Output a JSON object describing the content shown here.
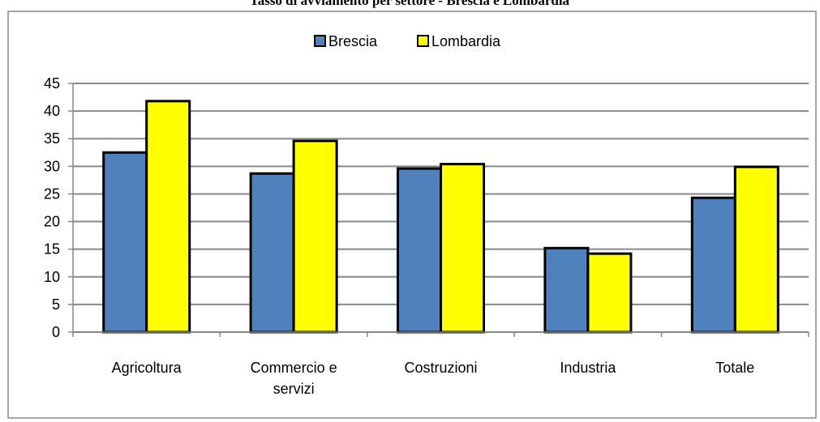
{
  "chart_data": {
    "type": "bar",
    "title": "Tasso di avviamento per settore - Brescia e Lombardia",
    "categories": [
      "Agricoltura",
      "Commercio e servizi",
      "Costruzioni",
      "Industria",
      "Totale"
    ],
    "series": [
      {
        "name": "Brescia",
        "color": "#4f81bd",
        "values": [
          32.5,
          28.7,
          29.6,
          15.2,
          24.3
        ]
      },
      {
        "name": "Lombardia",
        "color": "#ffff00",
        "values": [
          41.8,
          34.6,
          30.4,
          14.2,
          29.9
        ]
      }
    ],
    "ylim": [
      0,
      45
    ],
    "yticks": [
      0,
      5,
      10,
      15,
      20,
      25,
      30,
      35,
      40,
      45
    ],
    "grid": true,
    "legend": "top"
  }
}
